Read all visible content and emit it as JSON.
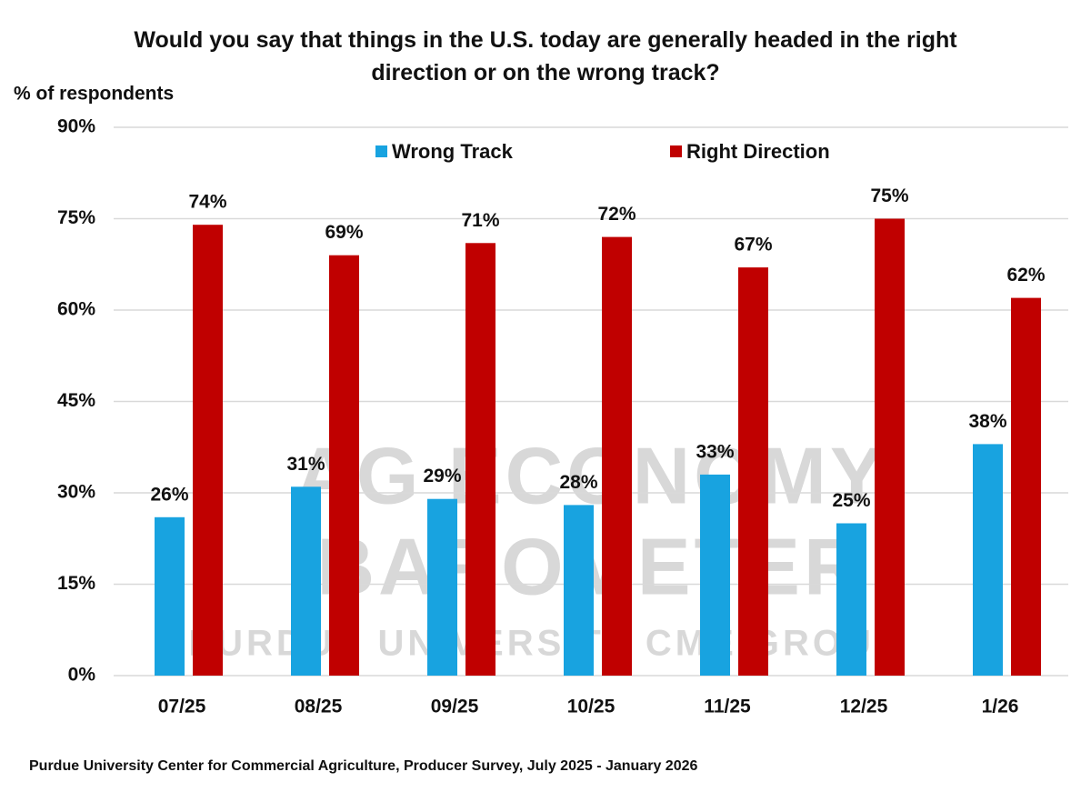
{
  "chart_data": {
    "type": "bar",
    "title": "Would you say that things in the U.S. today are generally headed in the right direction or on the wrong track?",
    "y_label": "% of respondents",
    "source": "Purdue University Center for Commercial Agriculture, Producer Survey, July 2025 - January 2026",
    "watermark": [
      "AG ECONOMY",
      "BAROMETER",
      "PURDUE UNIVERSITY  CME GROUP"
    ],
    "categories": [
      "07/25",
      "08/25",
      "09/25",
      "10/25",
      "11/25",
      "12/25",
      "1/26"
    ],
    "series": [
      {
        "name": "Wrong Track",
        "color": "#18a3e0",
        "values": [
          26,
          31,
          29,
          28,
          33,
          25,
          38
        ],
        "value_labels": [
          "26%",
          "31%",
          "29%",
          "28%",
          "33%",
          "25%",
          "38%"
        ]
      },
      {
        "name": "Right Direction",
        "color": "#c00000",
        "values": [
          74,
          69,
          71,
          72,
          67,
          75,
          62
        ],
        "value_labels": [
          "74%",
          "69%",
          "71%",
          "72%",
          "67%",
          "75%",
          "62%"
        ]
      }
    ],
    "ylim": [
      0,
      90
    ],
    "yticks": [
      {
        "value": 0,
        "label": "0%"
      },
      {
        "value": 15,
        "label": "15%"
      },
      {
        "value": 30,
        "label": "30%"
      },
      {
        "value": 45,
        "label": "45%"
      },
      {
        "value": 60,
        "label": "60%"
      },
      {
        "value": 75,
        "label": "75%"
      },
      {
        "value": 90,
        "label": "90%"
      }
    ],
    "grid": true,
    "legend": "top"
  }
}
